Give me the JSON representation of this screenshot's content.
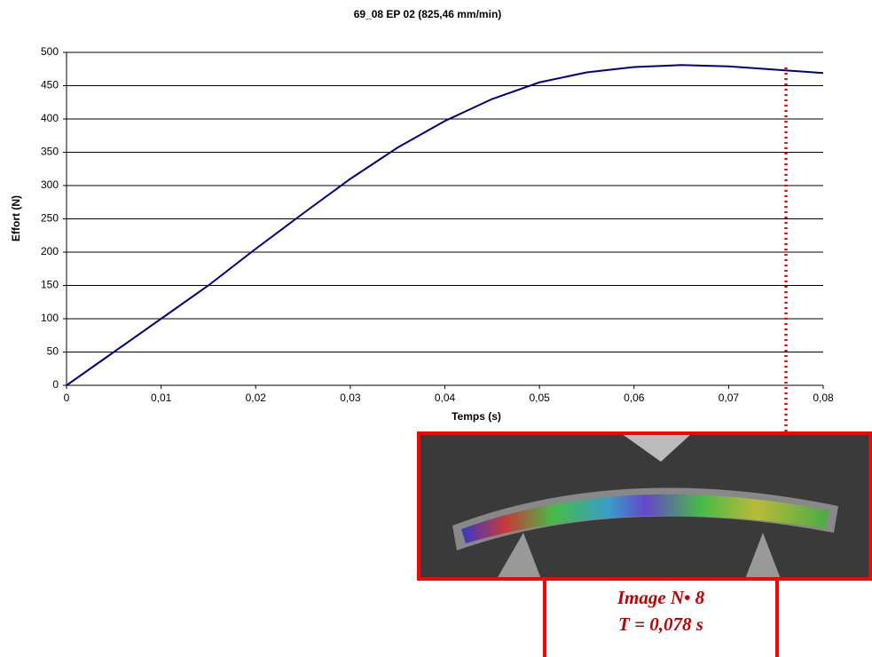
{
  "chart_data": {
    "type": "line",
    "title": "69_08 EP 02 (825,46 mm/min)",
    "x_label": "Temps (s)",
    "y_label": "Effort (N)",
    "x": [
      0,
      0.005,
      0.01,
      0.015,
      0.02,
      0.025,
      0.03,
      0.035,
      0.04,
      0.045,
      0.05,
      0.055,
      0.06,
      0.065,
      0.07,
      0.075,
      0.08
    ],
    "values": [
      0,
      50,
      100,
      150,
      205,
      258,
      310,
      357,
      397,
      430,
      455,
      470,
      478,
      481,
      479,
      474,
      469
    ],
    "color": "#00007f",
    "xlim": [
      0,
      0.08
    ],
    "xticks": [
      0,
      {
        "value": 0.01,
        "label": "0,01"
      },
      {
        "value": 0.02,
        "label": "0,02"
      },
      {
        "value": 0.03,
        "label": "0,03"
      },
      {
        "value": 0.04,
        "label": "0,04"
      },
      {
        "value": 0.05,
        "label": "0,05"
      },
      {
        "value": 0.06,
        "label": "0,06"
      },
      {
        "value": 0.07,
        "label": "0,07"
      },
      {
        "value": 0.08,
        "label": "0,08"
      }
    ],
    "ylim": [
      0,
      500
    ],
    "yticks": [
      0,
      50,
      100,
      150,
      200,
      250,
      300,
      350,
      400,
      450,
      500
    ],
    "grid": true,
    "annotations": [
      "Image N• 8",
      "T = 0,078 s"
    ]
  }
}
